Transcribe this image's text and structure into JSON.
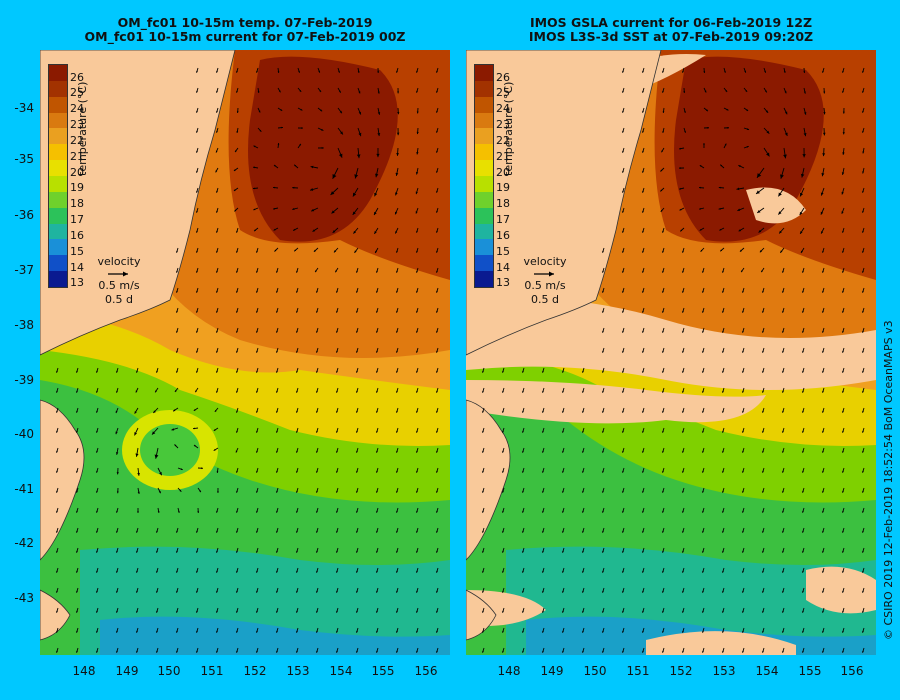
{
  "left_panel": {
    "title_line1": "OM_fc01 10-15m temp. 07-Feb-2019",
    "title_line2": "OM_fc01 10-15m current for 07-Feb-2019 00Z"
  },
  "right_panel": {
    "title_line1": "IMOS GSLA current for 06-Feb-2019 12Z",
    "title_line2": "IMOS L3S-3d SST at 07-Feb-2019 09:20Z"
  },
  "latitude_ticks": [
    "-34",
    "-35",
    "-36",
    "-37",
    "-38",
    "-39",
    "-40",
    "-41",
    "-42",
    "-43"
  ],
  "longitude_ticks": [
    "148",
    "149",
    "150",
    "151",
    "152",
    "153",
    "154",
    "155",
    "156"
  ],
  "colorbar": {
    "label": "temperature (°C)",
    "ticks": [
      "26",
      "25",
      "24",
      "23",
      "22",
      "21",
      "20",
      "19",
      "18",
      "17",
      "16",
      "15",
      "14",
      "13"
    ],
    "colors": [
      "#8b1a00",
      "#a23200",
      "#c05500",
      "#d97a10",
      "#eaa020",
      "#f5c000",
      "#e8e000",
      "#b8e000",
      "#6fd12c",
      "#2cc25a",
      "#1fb4a0",
      "#1a90d8",
      "#1050c8",
      "#0a1a90"
    ]
  },
  "velocity_key": {
    "label": "velocity",
    "speed": "0.5 m/s",
    "duration": "0.5 d"
  },
  "credit": "© CSIRO 2019   12-Feb-2019 18:52:54 BoM OceanMAPS v3"
}
